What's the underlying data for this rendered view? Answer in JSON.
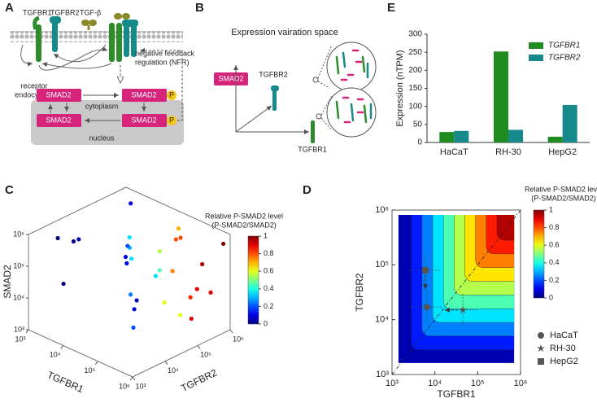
{
  "panel_a": {
    "label": "A",
    "tgfbr1": "TGFBR1",
    "tgfbr2": "TGFBR2",
    "tgfb": "TGF-β",
    "nfr": [
      "negative feedback",
      "regulation (NFR)"
    ],
    "endocytosis": [
      "receptor",
      "endocytosis"
    ],
    "cytoplasm": "cytoplasm",
    "nucleus": "nucleus",
    "smad2": [
      "SMAD2",
      "SMAD2",
      "SMAD2",
      "SMAD2"
    ],
    "phospho": [
      "P",
      "P"
    ]
  },
  "panel_b": {
    "label": "B",
    "title": "Expression vairation space",
    "smad2": "SMAD2",
    "tgfbr2": "TGFBR2",
    "tgfbr1": "TGFBR1"
  },
  "chart_data": [
    {
      "panel_label": "E",
      "type": "bar",
      "y_label": "Expression (nTPM)",
      "categories": [
        "HaCaT",
        "RH-30",
        "HepG2"
      ],
      "series": [
        {
          "name": "TGFBR1",
          "color": "#1e8c1e",
          "values": [
            29,
            252,
            16
          ]
        },
        {
          "name": "TGFBR2",
          "color": "#168a8a",
          "values": [
            32,
            35,
            104
          ]
        }
      ],
      "ylim": [
        0,
        300
      ],
      "yticks": [
        0,
        50,
        100,
        150,
        200,
        250,
        300
      ],
      "legend": "upper right"
    },
    {
      "panel_label": "C",
      "type": "scatter3d",
      "x_label": "TGFBR1",
      "y_label": "TGFBR2",
      "z_label": "SMAD2",
      "log_scale": true,
      "xlim": [
        1000,
        1000000
      ],
      "ylim": [
        1000,
        1000000
      ],
      "zlim": [
        1000,
        1000000
      ],
      "xticks": [
        {
          "value": 1000,
          "label": "10³"
        },
        {
          "value": 10000,
          "label": "10⁴"
        },
        {
          "value": 100000,
          "label": "10⁵"
        },
        {
          "value": 1000000,
          "label": "10⁶"
        }
      ],
      "yticks": [
        {
          "value": 1000,
          "label": "10³"
        },
        {
          "value": 10000,
          "label": "10⁴"
        },
        {
          "value": 100000,
          "label": "10⁵"
        },
        {
          "value": 1000000,
          "label": "10⁶"
        }
      ],
      "zticks": [
        {
          "value": 1000,
          "label": "10³"
        },
        {
          "value": 10000,
          "label": "10⁴"
        },
        {
          "value": 100000,
          "label": "10⁵"
        },
        {
          "value": 1000000,
          "label": "10⁶"
        }
      ],
      "x": [
        1500,
        3000,
        8000,
        20000,
        50000,
        150000,
        400000,
        900000,
        2000,
        5000,
        12000,
        30000,
        80000,
        200000,
        600000,
        1200,
        4000,
        10000,
        25000,
        60000,
        180000,
        500000,
        2500,
        7000,
        15000,
        40000,
        100000,
        300000,
        700000,
        850000
      ],
      "y": [
        900000,
        300000,
        150000,
        60000,
        20000,
        8000,
        3000,
        1500,
        500000,
        200000,
        90000,
        400000,
        250000,
        120000,
        50000,
        20000,
        8000,
        700000,
        350000,
        600000,
        400000,
        200000,
        3000,
        1500,
        600000,
        800000,
        700000,
        500000,
        900000,
        300000
      ],
      "z": [
        400000,
        20000,
        3000,
        100000,
        600000,
        5000,
        50000,
        200000,
        8000,
        70000,
        300000,
        2000,
        40000,
        900000,
        10000,
        150000,
        500000,
        6000,
        80000,
        250000,
        1500,
        30000,
        700000,
        60000,
        12000,
        350000,
        4000,
        90000,
        450000,
        25000
      ],
      "values": [
        0.1,
        0.1,
        0.25,
        0.35,
        0.3,
        0.2,
        0.1,
        0.05,
        0.1,
        0.2,
        0.35,
        0.6,
        0.75,
        0.8,
        0.6,
        0.02,
        0.05,
        0.35,
        0.55,
        0.8,
        0.9,
        0.9,
        0,
        0,
        0.45,
        0.7,
        0.85,
        0.95,
        1,
        0.9
      ],
      "colorbar_title": [
        "Relative P-SMAD2 level",
        "(P-SMAD2/SMAD2)"
      ],
      "clim": [
        0,
        1
      ],
      "cticks": [
        0,
        0.2,
        0.4,
        0.6,
        0.8,
        1
      ],
      "colormap": "jet"
    },
    {
      "panel_label": "D",
      "type": "contour",
      "x_label": "TGFBR1",
      "y_label": "TGFBR2",
      "log_scale": true,
      "xlim": [
        1000,
        1000000
      ],
      "ylim": [
        1000,
        1000000
      ],
      "xticks": [
        {
          "value": 1000,
          "label": "10³"
        },
        {
          "value": 10000,
          "label": "10⁴"
        },
        {
          "value": 100000,
          "label": "10⁵"
        },
        {
          "value": 1000000,
          "label": "10⁶"
        }
      ],
      "yticks": [
        {
          "value": 1000,
          "label": "10³"
        },
        {
          "value": 10000,
          "label": "10⁴"
        },
        {
          "value": 100000,
          "label": "10⁵"
        },
        {
          "value": 1000000,
          "label": "10⁶"
        }
      ],
      "colorbar_title": [
        "Relative P-SMAD2 level",
        "(P-SMAD2/SMAD2)"
      ],
      "clim": [
        0,
        1
      ],
      "cticks": [
        0,
        0.2,
        0.4,
        0.6,
        0.8,
        1
      ],
      "colormap": "jet",
      "marker_color": "#555555",
      "series": [
        {
          "name": "HaCaT",
          "marker": "circle",
          "x": [
            6500
          ],
          "values": [
            17000
          ]
        },
        {
          "name": "RH-30",
          "marker": "star",
          "x": [
            45000
          ],
          "values": [
            15000
          ]
        },
        {
          "name": "HepG2",
          "marker": "square",
          "x": [
            6000
          ],
          "values": [
            80000
          ]
        }
      ]
    }
  ]
}
